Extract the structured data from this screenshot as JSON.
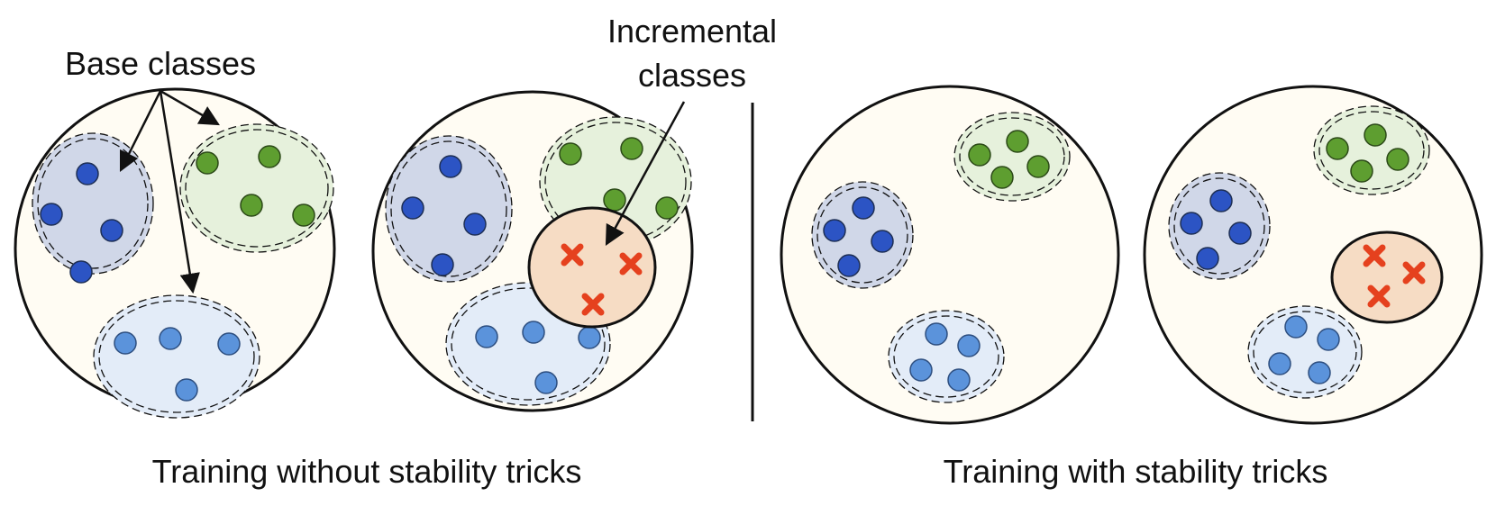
{
  "labels": {
    "base_classes": "Base classes",
    "incremental_line1": "Incremental",
    "incremental_line2": "classes",
    "caption_left": "Training without stability tricks",
    "caption_right": "Training with stability tricks"
  },
  "colors": {
    "background_circle": "#fffcf3",
    "outline": "#111111",
    "base_class_1_fill": "#d0d7e8",
    "base_class_1_point": "#2c54c4",
    "base_class_2_fill": "#e6f1dc",
    "base_class_2_point": "#5e9e30",
    "base_class_3_fill": "#e3ecf8",
    "base_class_3_point": "#5b93db",
    "incremental_fill": "#f6dcc4",
    "incremental_marker": "#e5411e"
  },
  "panels": [
    {
      "group": "without-stability-tricks",
      "has_incremental": false
    },
    {
      "group": "without-stability-tricks",
      "has_incremental": true
    },
    {
      "group": "with-stability-tricks",
      "has_incremental": false
    },
    {
      "group": "with-stability-tricks",
      "has_incremental": true
    }
  ]
}
